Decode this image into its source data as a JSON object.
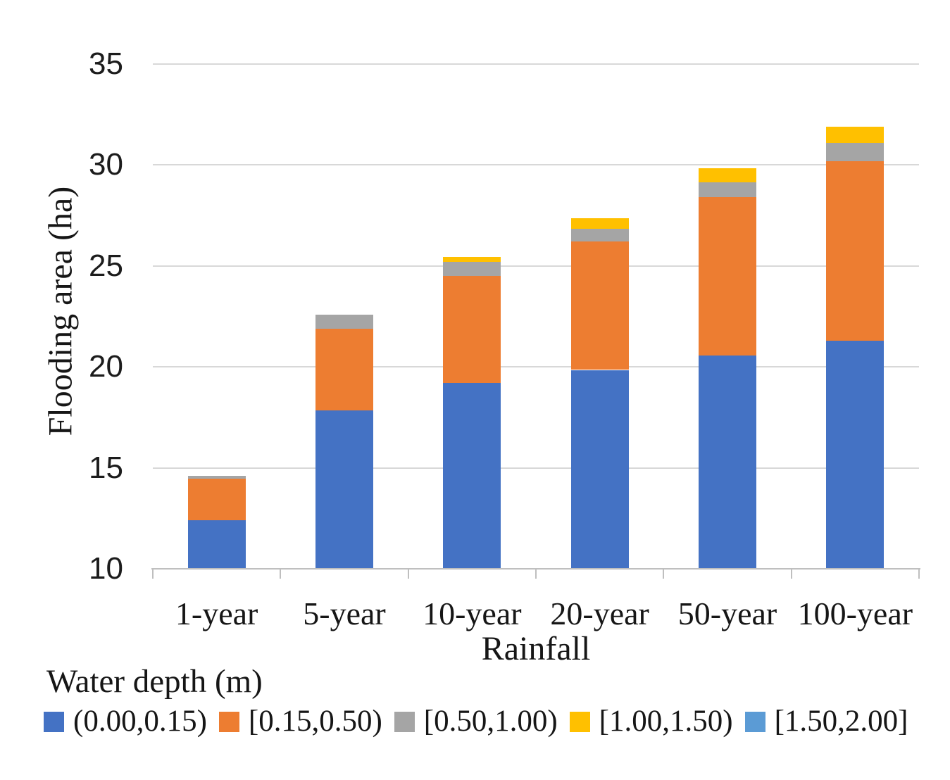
{
  "chart_data": {
    "type": "bar",
    "stacked": true,
    "title": "",
    "xlabel": "Rainfall",
    "ylabel": "Flooding area (ha)",
    "legend_title": "Water depth (m)",
    "categories": [
      "1-year",
      "5-year",
      "10-year",
      "20-year",
      "50-year",
      "100-year"
    ],
    "series": [
      {
        "name": "(0.00,0.15)",
        "color": "#4472c4",
        "values": [
          12.4,
          17.85,
          19.2,
          19.85,
          20.55,
          21.3
        ]
      },
      {
        "name": "[0.15,0.50)",
        "color": "#ed7d31",
        "values": [
          2.05,
          4.05,
          5.3,
          6.35,
          7.85,
          8.9
        ]
      },
      {
        "name": "[0.50,1.00)",
        "color": "#a5a5a5",
        "values": [
          0.15,
          0.7,
          0.7,
          0.65,
          0.75,
          0.9
        ]
      },
      {
        "name": "[1.00,1.50)",
        "color": "#ffc000",
        "values": [
          0,
          0,
          0.25,
          0.5,
          0.7,
          0.8
        ]
      },
      {
        "name": "[1.50,2.00]",
        "color": "#5b9bd5",
        "values": [
          0,
          0,
          0,
          0,
          0,
          0
        ]
      }
    ],
    "totals": [
      14.6,
      22.6,
      25.45,
      27.35,
      29.85,
      31.9
    ],
    "ylim": [
      10,
      35
    ],
    "yticks": [
      10,
      15,
      20,
      25,
      30,
      35
    ],
    "grid": "horizontal",
    "legend_position": "bottom-left",
    "gridline_color": "#d8d8d8",
    "axis_line_color": "#bfbfbf",
    "background_color": "#ffffff"
  }
}
